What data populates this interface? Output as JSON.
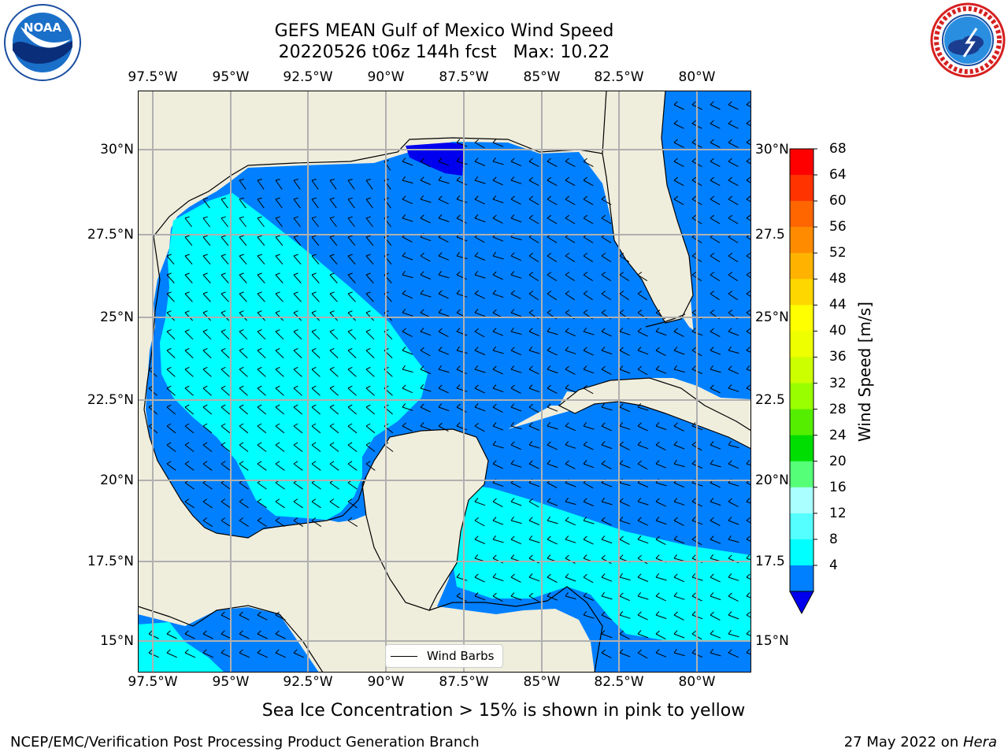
{
  "title_line1": "GEFS MEAN Gulf of Mexico Wind Speed",
  "title_line2": "20220526 t06z 144h fcst   Max: 10.22",
  "x_ticks": [
    "97.5°W",
    "95°W",
    "92.5°W",
    "90°W",
    "87.5°W",
    "85°W",
    "82.5°W",
    "80°W"
  ],
  "y_ticks_left": [
    "30°N",
    "27.5°N",
    "25°N",
    "22.5°N",
    "20°N",
    "17.5°N",
    "15°N"
  ],
  "y_ticks_right": [
    "30°N",
    "27.5",
    "25°N",
    "22.5",
    "20°N",
    "17.5",
    "15°N"
  ],
  "colorbar": {
    "title": "Wind Speed [m/s]",
    "labels": [
      "68",
      "64",
      "60",
      "56",
      "52",
      "48",
      "44",
      "40",
      "36",
      "32",
      "28",
      "24",
      "20",
      "16",
      "12",
      "8",
      "4"
    ],
    "colors": [
      "#ff0000",
      "#ff3300",
      "#ff6600",
      "#ff8c00",
      "#ffb300",
      "#ffd700",
      "#ffff00",
      "#eeff00",
      "#ccff00",
      "#99ff00",
      "#55ee00",
      "#00dd00",
      "#55ff77",
      "#aaffff",
      "#55ffff",
      "#00ffff",
      "#0080ff"
    ],
    "under_color": "#0000ee"
  },
  "legend_label": "Wind Barbs",
  "ice_note": "Sea Ice Concentration > 15% is shown in pink to yellow",
  "footer_left": "NCEP/EMC/Verification Post Processing Product Generation Branch",
  "footer_date": "27 May 2022 on ",
  "footer_host": "Hera",
  "noaa_logo_text": "NOAA",
  "colors": {
    "land": "#efeddc",
    "wind_4_8": "#0080ff",
    "wind_8_12": "#00ffff",
    "wind_below_4": "#0000ee"
  }
}
